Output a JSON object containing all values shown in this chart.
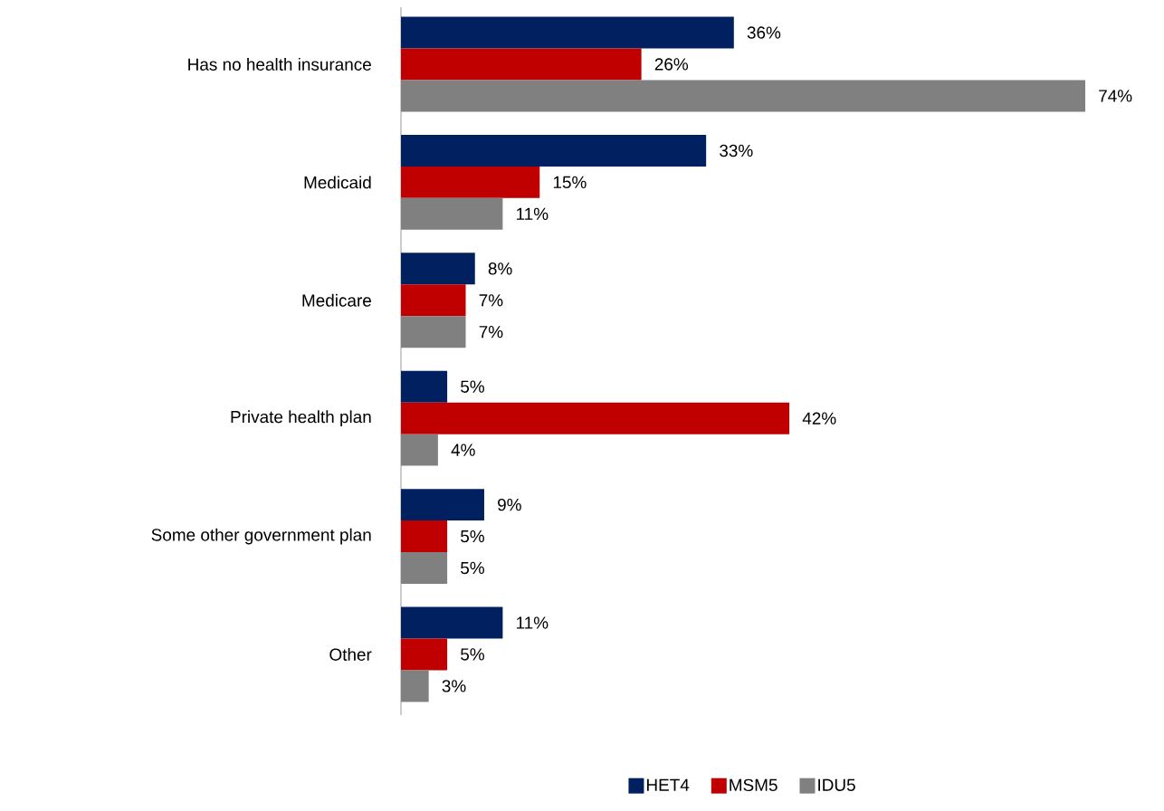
{
  "chart_data": {
    "type": "bar",
    "orientation": "horizontal",
    "categories": [
      "Has no health insurance",
      "Medicaid",
      "Medicare",
      "Private health plan",
      "Some other government plan",
      "Other"
    ],
    "series": [
      {
        "name": "HET4",
        "color": "#002060",
        "values": [
          36,
          33,
          8,
          5,
          9,
          11
        ],
        "value_labels": [
          "36%",
          "33%",
          "8%",
          "5%",
          "9%",
          "11%"
        ]
      },
      {
        "name": "MSM5",
        "color": "#c00000",
        "values": [
          26,
          15,
          7,
          42,
          5,
          5
        ],
        "value_labels": [
          "26%",
          "15%",
          "7%",
          "42%",
          "5%",
          "5%"
        ]
      },
      {
        "name": "IDU5",
        "color": "#808080",
        "values": [
          74,
          11,
          7,
          4,
          5,
          3
        ],
        "value_labels": [
          "74%",
          "11%",
          "7%",
          "4%",
          "5%",
          "3%"
        ]
      }
    ],
    "legend": "bottom"
  }
}
